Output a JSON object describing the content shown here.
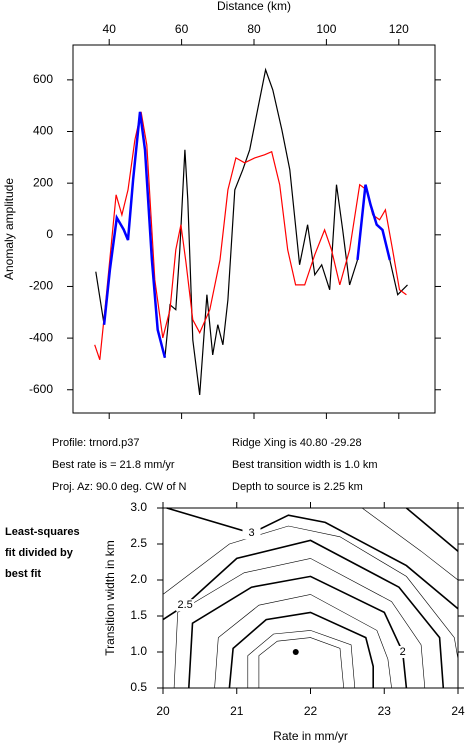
{
  "chart_data": [
    {
      "type": "line",
      "xlabel": "Distance (km)",
      "ylabel": "Anomaly amplitude",
      "xlim": [
        30,
        130
      ],
      "xticks": [
        40,
        60,
        80,
        100,
        120
      ],
      "ylim": [
        -690,
        735
      ],
      "yticks": [
        -600,
        -400,
        -200,
        0,
        200,
        400,
        600
      ],
      "series": [
        {
          "color": "#000000",
          "x": [
            36.3,
            38.6,
            40.2,
            42.1,
            44,
            45.2,
            46.6,
            48.5,
            49.9,
            51.8,
            53.4,
            55.4,
            56.8,
            58.4,
            59.5,
            60.9,
            61.7,
            63.1,
            65,
            67,
            68.6,
            70,
            71.4,
            72.8,
            74.7,
            76.9,
            78.8,
            81,
            83.2,
            85.2,
            87.7,
            89.9,
            92.6,
            94.8,
            96.8,
            98.7,
            100.9,
            102.8,
            104.5,
            106.4,
            108.6,
            110.8,
            112.2,
            113.9,
            115.5,
            117.5,
            119.7,
            122.4
          ],
          "values": [
            -143,
            -348,
            -135,
            66,
            20,
            -20,
            213,
            476,
            329,
            -97,
            -368,
            -476,
            -271,
            -290,
            -58,
            329,
            135,
            -407,
            -620,
            -232,
            -465,
            -348,
            -426,
            -252,
            174,
            252,
            329,
            484,
            639,
            561,
            406,
            252,
            -116,
            39,
            -155,
            -116,
            -213,
            194,
            19,
            -194,
            -97,
            194,
            116,
            39,
            19,
            -97,
            -232,
            -194
          ]
        },
        {
          "color": "#ff0000",
          "x": [
            36,
            37.4,
            39.1,
            41.9,
            43.5,
            45.2,
            47.1,
            48.8,
            50.4,
            52.6,
            54.8,
            56.8,
            58.4,
            59.8,
            61.2,
            63.1,
            65,
            67.8,
            70.6,
            72.8,
            75,
            77.4,
            80.2,
            82.9,
            84.9,
            87.1,
            89.3,
            91.5,
            94,
            96.8,
            99.5,
            101.4,
            103.7,
            106.4,
            109.2,
            111.1,
            112.8,
            114.7,
            116.3,
            118.3,
            120.2,
            122.1
          ],
          "values": [
            -426,
            -484,
            -252,
            155,
            77,
            174,
            368,
            476,
            348,
            -174,
            -399,
            -290,
            -58,
            39,
            -105,
            -329,
            -379,
            -290,
            -97,
            174,
            298,
            279,
            298,
            310,
            322,
            194,
            -58,
            -194,
            -194,
            -77,
            19,
            -58,
            -194,
            -58,
            194,
            174,
            77,
            58,
            97,
            -58,
            -213,
            -232
          ]
        },
        {
          "color": "#0000ff",
          "x": [
            38.6,
            40.2,
            42.1,
            44,
            45.2,
            46.6,
            48.5,
            49.9,
            51.8,
            53.4,
            55.4,
            80,
            108.6,
            110.8,
            112.2,
            113.9,
            115.5,
            117.5
          ],
          "values": [
            -348,
            -135,
            66,
            20,
            -20,
            213,
            476,
            329,
            -97,
            -368,
            -476,
            null,
            -97,
            194,
            116,
            39,
            19,
            -97
          ]
        }
      ]
    },
    {
      "type": "contour",
      "xlabel": "Rate in mm/yr",
      "ylabel": "Transition width in km",
      "annotation": [
        "Least-squares",
        "fit divided by",
        "best fit"
      ],
      "xlim": [
        20,
        24
      ],
      "xticks": [
        20,
        21,
        22,
        23,
        24
      ],
      "ylim": [
        0.5,
        3.0
      ],
      "yticks": [
        0.5,
        {
          "value": 1,
          "label": "1.0"
        },
        1.5,
        {
          "value": 2,
          "label": "2.0"
        },
        2.5,
        {
          "value": 3,
          "label": "3.0"
        }
      ],
      "point": {
        "x": 21.8,
        "y": 1.0
      },
      "contours": [
        {
          "level": 1.1,
          "x": [
            21.3,
            21.3,
            21.55,
            22.0,
            22.4,
            22.45
          ],
          "y": [
            0.5,
            0.95,
            1.15,
            1.2,
            1.05,
            0.5
          ]
        },
        {
          "level": 1.25,
          "x": [
            21.15,
            21.15,
            21.5,
            22.0,
            22.55,
            22.6
          ],
          "y": [
            0.5,
            0.95,
            1.25,
            1.3,
            1.1,
            0.5
          ]
        },
        {
          "level": 1.5,
          "x": [
            20.9,
            20.95,
            21.4,
            22.0,
            22.75,
            22.85,
            22.85
          ],
          "y": [
            0.5,
            1.05,
            1.45,
            1.55,
            1.2,
            0.8,
            0.5
          ]
        },
        {
          "level": 1.75,
          "x": [
            20.7,
            20.75,
            21.3,
            22.0,
            22.9,
            23.05,
            23.1
          ],
          "y": [
            0.5,
            1.2,
            1.65,
            1.8,
            1.3,
            0.9,
            0.5
          ]
        },
        {
          "level": 2,
          "label": "2",
          "x": [
            23.3,
            23.25,
            23.0,
            22.0,
            21.2,
            20.4,
            20.35
          ],
          "y": [
            0.5,
            1.0,
            1.55,
            2.05,
            1.9,
            1.4,
            0.5
          ]
        },
        {
          "level": 2.25,
          "x": [
            20.15,
            20.2,
            21.1,
            22.0,
            23.1,
            23.5,
            23.55
          ],
          "y": [
            0.5,
            1.55,
            2.1,
            2.3,
            1.7,
            1.1,
            0.5
          ]
        },
        {
          "level": 2.5,
          "label": "2.5",
          "x": [
            20,
            20.3,
            21.0,
            22.0,
            23.2,
            23.75,
            23.8
          ],
          "y": [
            1.45,
            1.65,
            2.3,
            2.55,
            1.9,
            1.2,
            0.5
          ]
        },
        {
          "level": 2.75,
          "x": [
            20,
            20.9,
            21.7,
            22.4,
            23.3,
            23.95,
            24
          ],
          "y": [
            1.8,
            2.5,
            2.75,
            2.6,
            2.05,
            1.2,
            0.9
          ]
        },
        {
          "level": 3,
          "label": "3",
          "x": [
            20.05,
            21.2,
            21.7,
            22.2,
            23.3,
            24
          ],
          "y": [
            3.0,
            2.65,
            2.9,
            2.8,
            2.2,
            1.6
          ]
        },
        {
          "level": 3.25,
          "x": [
            22.7,
            23.5,
            24
          ],
          "y": [
            3.0,
            2.4,
            2.0
          ]
        },
        {
          "level": 3.5,
          "x": [
            23.3,
            24
          ],
          "y": [
            3.0,
            2.4
          ]
        }
      ]
    }
  ],
  "info": [
    [
      "Profile: trnord.p37",
      "Ridge Xing is 40.80 -29.28"
    ],
    [
      "Best rate is = 21.8 mm/yr",
      "Best transition width is 1.0 km"
    ],
    [
      "Proj. Az: 90.0 deg. CW of N",
      "Depth to source is   2.25 km"
    ]
  ]
}
